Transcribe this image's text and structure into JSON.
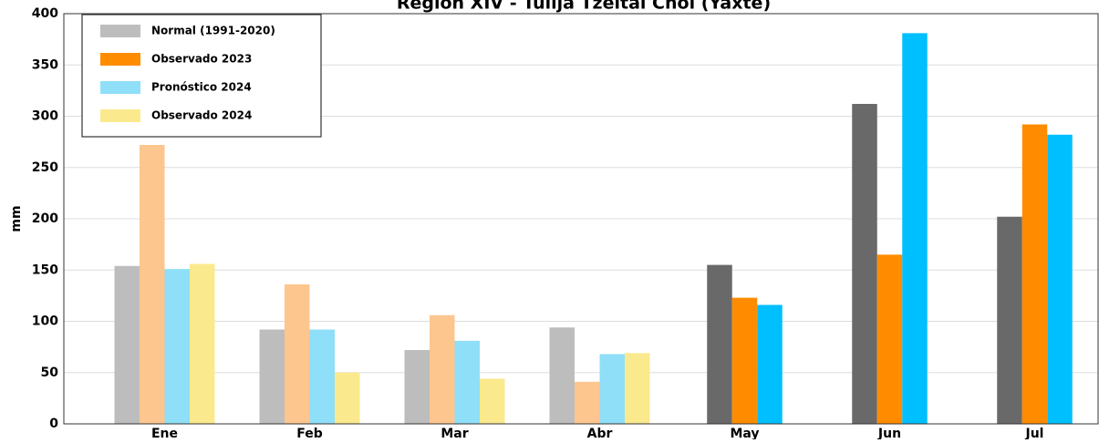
{
  "chart_data": {
    "type": "bar",
    "title": "Región XIV - Tulijá Tzeltal Chol (Yaxté)",
    "y_label": "mm",
    "categories": [
      "Ene",
      "Feb",
      "Mar",
      "Abr",
      "May",
      "Jun",
      "Jul"
    ],
    "series": [
      {
        "name": "Normal (1991-2020)",
        "color": "#bdbdbd",
        "colors": [
          "#bdbdbd",
          "#bdbdbd",
          "#bdbdbd",
          "#bdbdbd",
          "#696969",
          "#696969",
          "#696969"
        ],
        "values": [
          154,
          92,
          72,
          94,
          155,
          312,
          202
        ]
      },
      {
        "name": "Observado 2023",
        "color": "#ff8c00",
        "colors": [
          "#fdc68f",
          "#fdc68f",
          "#fdc68f",
          "#fdc68f",
          "#ff8c00",
          "#ff8c00",
          "#ff8c00"
        ],
        "values": [
          272,
          136,
          106,
          41,
          123,
          165,
          292
        ]
      },
      {
        "name": "Pronóstico 2024",
        "color": "#8fdff8",
        "colors": [
          "#8fdff8",
          "#8fdff8",
          "#8fdff8",
          "#8fdff8",
          "#00bfff",
          "#00bfff",
          "#00bfff"
        ],
        "values": [
          151,
          92,
          81,
          68,
          116,
          381,
          282
        ]
      },
      {
        "name": "Observado 2024",
        "color": "#fbe98d",
        "colors": [
          "#fbe98d",
          "#fbe98d",
          "#fbe98d",
          "#fbe98d",
          "#fbe98d",
          "#fbe98d",
          "#fbe98d"
        ],
        "values": [
          156,
          50,
          44,
          69,
          null,
          null,
          null
        ]
      }
    ],
    "ylim": [
      0,
      400
    ],
    "yticks": [
      0,
      50,
      100,
      150,
      200,
      250,
      300,
      350,
      400
    ],
    "grid": true,
    "legend": "upper left"
  }
}
